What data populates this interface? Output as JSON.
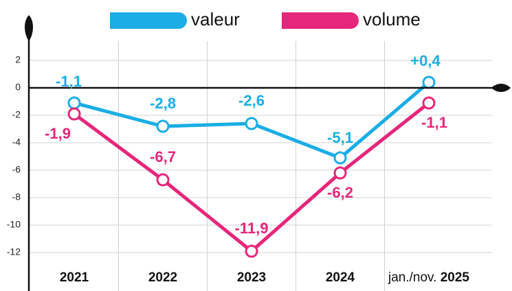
{
  "chart_data": {
    "type": "line",
    "categories": [
      "2021",
      "2022",
      "2023",
      "2024",
      "jan./nov. 2025"
    ],
    "series": [
      {
        "name": "valeur",
        "color": "#1aade6",
        "values": [
          -1.1,
          -2.8,
          -2.6,
          -5.1,
          0.4
        ],
        "value_labels": [
          "-1,1",
          "-2,8",
          "-2,6",
          "-5,1",
          "+0,4"
        ]
      },
      {
        "name": "volume",
        "color": "#e6267a",
        "values": [
          -1.9,
          -6.7,
          -11.9,
          -6.2,
          -1.1
        ],
        "value_labels": [
          "-1,9",
          "-6,7",
          "-11,9",
          "-6,2",
          "-1,1"
        ]
      }
    ],
    "ylim": [
      -14,
      3.4
    ],
    "yticks": [
      2,
      0,
      -2,
      -4,
      -6,
      -8,
      -10,
      -12
    ],
    "grid": true,
    "legend": "top"
  }
}
